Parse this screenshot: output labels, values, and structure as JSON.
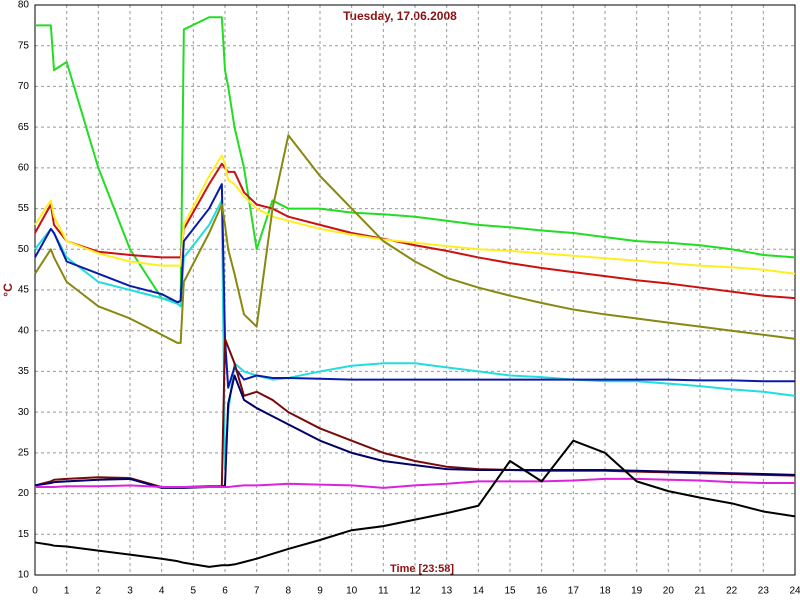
{
  "chart_data": {
    "type": "line",
    "title": "Tuesday, 17.06.2008",
    "x_label": "Time [23:58]",
    "y_label": "°C",
    "x": [
      0,
      0.5,
      0.6,
      1,
      2,
      3,
      4,
      4.5,
      4.6,
      4.7,
      5.5,
      5.9,
      6,
      6.1,
      6.3,
      6.6,
      7,
      7.5,
      8,
      9,
      10,
      11,
      12,
      13,
      14,
      15,
      16,
      17,
      18,
      19,
      20,
      21,
      22,
      23,
      24
    ],
    "xlim": [
      0,
      24
    ],
    "xticks": [
      0,
      1,
      2,
      3,
      4,
      5,
      6,
      7,
      8,
      9,
      10,
      11,
      12,
      13,
      14,
      15,
      16,
      17,
      18,
      19,
      20,
      21,
      22,
      23,
      24
    ],
    "ylim": [
      10,
      80
    ],
    "yticks": [
      10,
      15,
      20,
      25,
      30,
      35,
      40,
      45,
      50,
      55,
      60,
      65,
      70,
      75,
      80
    ],
    "grid": true,
    "series": [
      {
        "color": "#22dd22",
        "values": [
          77.5,
          77.5,
          72,
          73,
          60,
          50,
          44,
          43.5,
          43.5,
          77,
          78.5,
          78.5,
          72,
          70,
          65,
          60,
          50,
          56,
          55,
          55,
          54.5,
          54.3,
          54,
          53.5,
          53,
          52.7,
          52.3,
          52,
          51.5,
          51,
          50.8,
          50.5,
          50,
          49.3,
          49
        ]
      },
      {
        "color": "#cc1111",
        "values": [
          52,
          55.5,
          53,
          51,
          49.7,
          49.3,
          49,
          49,
          49,
          52.5,
          58,
          60.5,
          60,
          59.5,
          59.5,
          57,
          55.5,
          55,
          54,
          53,
          52,
          51.3,
          50.5,
          49.8,
          49,
          48.3,
          47.7,
          47.2,
          46.7,
          46.2,
          45.8,
          45.3,
          44.8,
          44.3,
          44
        ]
      },
      {
        "color": "#ffee22",
        "values": [
          53,
          56,
          54,
          51,
          49.5,
          48.5,
          48,
          48,
          48,
          53,
          59,
          61.5,
          60.5,
          58.5,
          58,
          56.5,
          55,
          54,
          53.5,
          52.5,
          51.8,
          51.2,
          50.8,
          50.4,
          50,
          49.8,
          49.5,
          49.2,
          48.9,
          48.6,
          48.3,
          48,
          47.8,
          47.5,
          47
        ]
      },
      {
        "color": "#22dddd",
        "values": [
          50,
          52.5,
          52,
          49,
          46,
          45,
          44,
          43.3,
          43,
          49,
          53,
          56,
          23,
          30,
          36,
          35,
          34.5,
          34,
          34.2,
          35,
          35.7,
          36,
          36,
          35.5,
          35,
          34.5,
          34.3,
          34,
          33.8,
          33.8,
          33.5,
          33.2,
          32.8,
          32.5,
          32
        ]
      },
      {
        "color": "#0a1aa8",
        "values": [
          49,
          52.5,
          52,
          48.5,
          47,
          45.5,
          44.5,
          43.5,
          43.7,
          51,
          55,
          58,
          39,
          33,
          35.5,
          34,
          34.5,
          34.2,
          34.2,
          34.1,
          34,
          34,
          34,
          34,
          34,
          34,
          34,
          34,
          34,
          34,
          34,
          33.9,
          33.9,
          33.8,
          33.8
        ]
      },
      {
        "color": "#888811",
        "values": [
          47,
          50,
          49,
          46,
          43,
          41.5,
          39.5,
          38.5,
          38.5,
          46,
          52,
          55.5,
          53,
          50,
          47,
          42,
          40.5,
          55,
          64,
          59,
          55,
          51,
          48.5,
          46.5,
          45.3,
          44.3,
          43.4,
          42.6,
          42,
          41.5,
          41,
          40.5,
          40,
          39.5,
          39
        ]
      },
      {
        "color": "#7a0a0a",
        "values": [
          21,
          21.5,
          21.7,
          21.8,
          22,
          21.9,
          20.8,
          20.8,
          20.8,
          20.8,
          20.9,
          20.9,
          39,
          38,
          36,
          32,
          32.5,
          31.5,
          30,
          28,
          26.5,
          25,
          24,
          23.3,
          23,
          22.9,
          22.8,
          22.8,
          22.8,
          22.7,
          22.6,
          22.5,
          22.4,
          22.3,
          22.2
        ]
      },
      {
        "color": "#000066",
        "values": [
          21,
          21.3,
          21.4,
          21.5,
          21.7,
          21.8,
          20.7,
          20.7,
          20.7,
          20.7,
          20.8,
          20.8,
          21,
          31,
          34.5,
          31.5,
          30.5,
          29.5,
          28.5,
          26.5,
          25,
          24,
          23.5,
          23,
          22.9,
          22.9,
          22.9,
          22.9,
          22.9,
          22.8,
          22.7,
          22.6,
          22.5,
          22.4,
          22.3
        ]
      },
      {
        "color": "#dd22dd",
        "values": [
          20.8,
          20.8,
          20.8,
          20.9,
          20.9,
          21,
          20.8,
          20.8,
          20.8,
          20.8,
          20.8,
          20.8,
          20.8,
          20.8,
          20.9,
          21,
          21,
          21.1,
          21.2,
          21.1,
          21,
          20.7,
          21,
          21.2,
          21.5,
          21.5,
          21.5,
          21.6,
          21.8,
          21.8,
          21.7,
          21.6,
          21.4,
          21.3,
          21.3
        ]
      },
      {
        "color": "#000000",
        "values": [
          14,
          13.7,
          13.6,
          13.5,
          13,
          12.5,
          12,
          11.7,
          11.6,
          11.5,
          11,
          11.2,
          11.2,
          11.2,
          11.3,
          11.6,
          12,
          12.6,
          13.2,
          14.3,
          15.5,
          16,
          16.8,
          17.6,
          18.5,
          24,
          21.5,
          26.5,
          25,
          21.5,
          20.3,
          19.5,
          18.8,
          17.8,
          17.2
        ]
      }
    ]
  }
}
